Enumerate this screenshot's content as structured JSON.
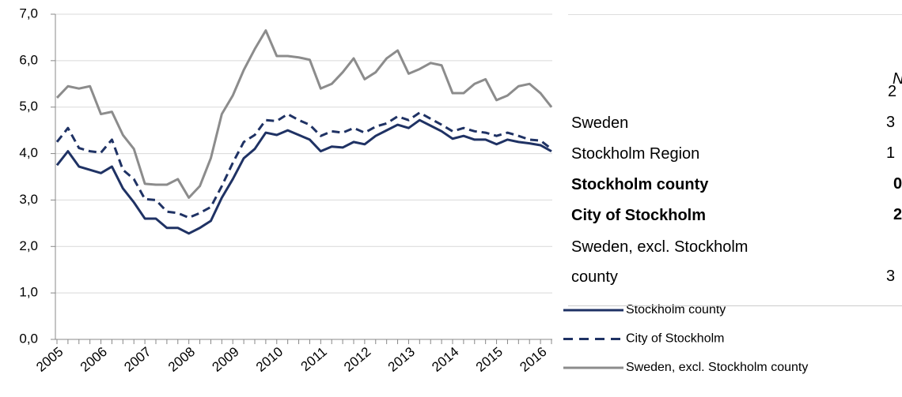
{
  "chart_data": {
    "type": "line",
    "categories": [
      "2005",
      null,
      null,
      null,
      "2006",
      null,
      null,
      null,
      "2007",
      null,
      null,
      null,
      "2008",
      null,
      null,
      null,
      "2009",
      null,
      null,
      null,
      "2010",
      null,
      null,
      null,
      "2011",
      null,
      null,
      null,
      "2012",
      null,
      null,
      null,
      "2013",
      null,
      null,
      null,
      "2014",
      null,
      null,
      null,
      "2015",
      null,
      null,
      null,
      "2016",
      null
    ],
    "series": [
      {
        "name": "Stockholm county",
        "color": "#1f3264",
        "style": "solid",
        "values": [
          3.75,
          4.05,
          3.72,
          3.65,
          3.58,
          3.72,
          3.25,
          2.95,
          2.6,
          2.6,
          2.4,
          2.4,
          2.28,
          2.4,
          2.55,
          3.05,
          3.45,
          3.9,
          4.1,
          4.45,
          4.4,
          4.5,
          4.4,
          4.3,
          4.05,
          4.15,
          4.13,
          4.25,
          4.2,
          4.38,
          4.5,
          4.62,
          4.55,
          4.72,
          4.6,
          4.48,
          4.32,
          4.38,
          4.3,
          4.3,
          4.2,
          4.3,
          4.25,
          4.22,
          4.18,
          4.05
        ]
      },
      {
        "name": "City of Stockholm",
        "color": "#1f3264",
        "style": "dashed",
        "values": [
          4.25,
          4.55,
          4.12,
          4.05,
          4.02,
          4.3,
          3.65,
          3.45,
          3.02,
          3.0,
          2.75,
          2.72,
          2.62,
          2.72,
          2.85,
          3.3,
          3.8,
          4.25,
          4.4,
          4.72,
          4.7,
          4.85,
          4.72,
          4.62,
          4.38,
          4.48,
          4.45,
          4.55,
          4.45,
          4.58,
          4.65,
          4.8,
          4.72,
          4.88,
          4.75,
          4.62,
          4.48,
          4.55,
          4.48,
          4.45,
          4.38,
          4.45,
          4.38,
          4.3,
          4.28,
          4.1
        ]
      },
      {
        "name": "Sweden, excl. Stockholm county",
        "color": "#8c8c8c",
        "style": "solid",
        "values": [
          5.2,
          5.45,
          5.4,
          5.45,
          4.85,
          4.9,
          4.4,
          4.1,
          3.35,
          3.33,
          3.33,
          3.45,
          3.05,
          3.3,
          3.9,
          4.85,
          5.25,
          5.8,
          6.25,
          6.65,
          6.1,
          6.1,
          6.07,
          6.02,
          5.4,
          5.5,
          5.75,
          6.05,
          5.6,
          5.75,
          6.05,
          6.22,
          5.72,
          5.82,
          5.95,
          5.9,
          5.3,
          5.3,
          5.5,
          5.6,
          5.15,
          5.25,
          5.45,
          5.5,
          5.3,
          5.0
        ]
      }
    ],
    "ylim": [
      0,
      7
    ],
    "yticks": [
      {
        "value": 0,
        "label": "0,0"
      },
      {
        "value": 1,
        "label": "1,0"
      },
      {
        "value": 2,
        "label": "2,0"
      },
      {
        "value": 3,
        "label": "3,0"
      },
      {
        "value": 4,
        "label": "4,0"
      },
      {
        "value": 5,
        "label": "5,0"
      },
      {
        "value": 6,
        "label": "6,0"
      },
      {
        "value": 7,
        "label": "7,0"
      }
    ],
    "grid": true
  },
  "table": {
    "header": [
      "N",
      "2"
    ],
    "rows": [
      {
        "label": "Sweden",
        "value": "3",
        "bold": false
      },
      {
        "label": "Stockholm Region",
        "value": "1",
        "bold": false
      },
      {
        "label": "Stockholm county",
        "value": "0",
        "bold": true
      },
      {
        "label": "City of Stockholm",
        "value": "2",
        "bold": true
      },
      {
        "label": "Sweden, excl. Stockholm county",
        "value": "3",
        "bold": false
      }
    ]
  }
}
